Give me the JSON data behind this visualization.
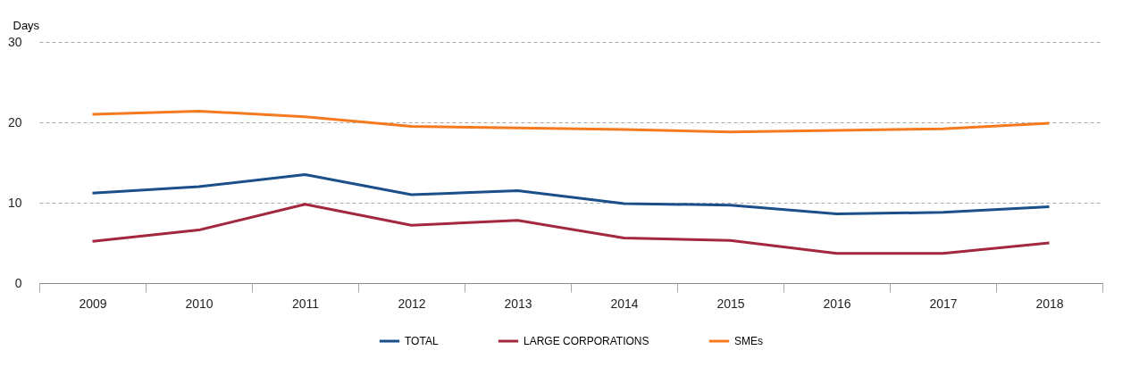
{
  "chart_data": {
    "type": "line",
    "ylabel": "Days",
    "categories": [
      "2009",
      "2010",
      "2011",
      "2012",
      "2013",
      "2014",
      "2015",
      "2016",
      "2017",
      "2018"
    ],
    "series": [
      {
        "name": "TOTAL",
        "color": "#1a4f8a",
        "values": [
          11.2,
          12.0,
          13.5,
          11.0,
          11.5,
          9.9,
          9.7,
          8.6,
          8.8,
          9.5
        ]
      },
      {
        "name": "LARGE CORPORATIONS",
        "color": "#a3283f",
        "values": [
          5.2,
          6.6,
          9.8,
          7.2,
          7.8,
          5.6,
          5.3,
          3.7,
          3.7,
          5.0
        ]
      },
      {
        "name": "SMEs",
        "color": "#f47a20",
        "values": [
          21.0,
          21.4,
          20.7,
          19.5,
          19.3,
          19.1,
          18.8,
          19.0,
          19.2,
          19.9
        ]
      }
    ],
    "ylim": [
      0,
      30
    ],
    "yticks": [
      0,
      10,
      20,
      30
    ],
    "grid": "y",
    "legend": "bottom",
    "marker": "none",
    "line_style": "solid"
  }
}
